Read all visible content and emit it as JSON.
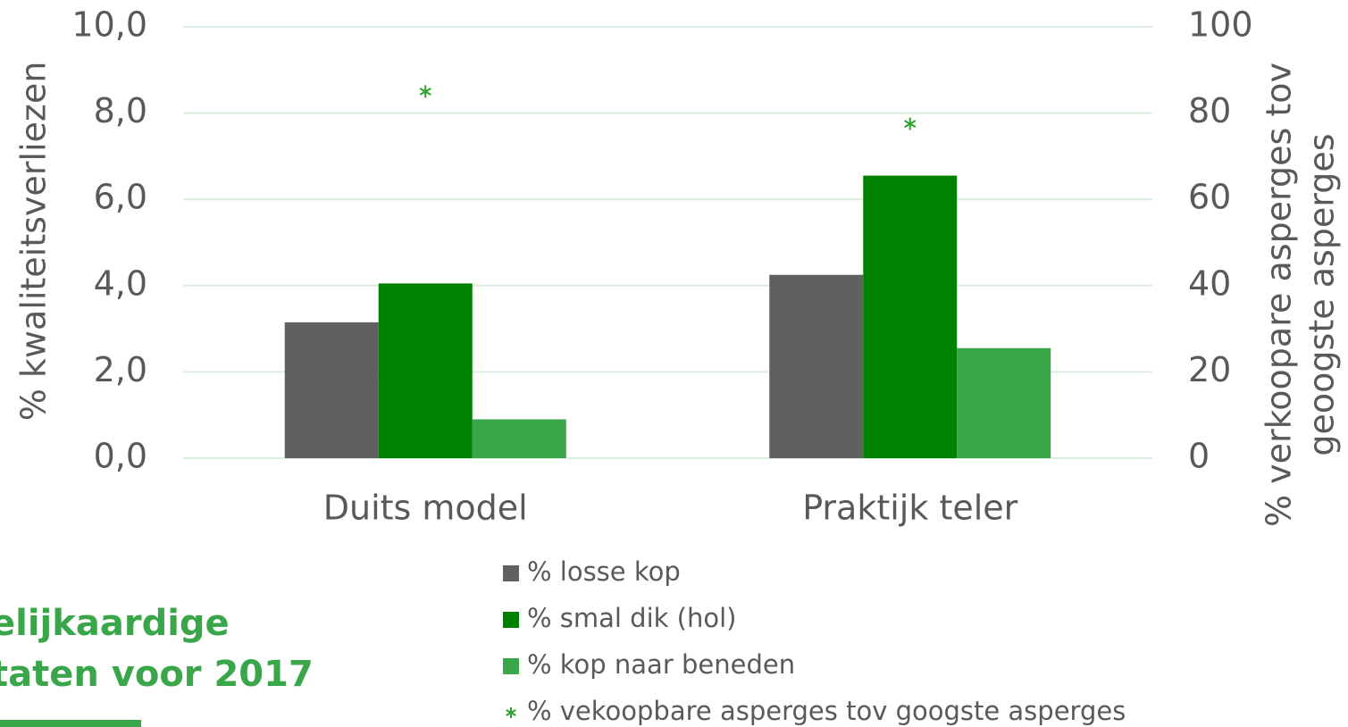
{
  "chart_data": {
    "type": "bar",
    "categories": [
      "Duits model",
      "Praktijk teler"
    ],
    "series": [
      {
        "name": "% losse kop",
        "color": "#606060",
        "values": [
          3.15,
          4.25
        ]
      },
      {
        "name": "% smal dik (hol)",
        "color": "#008000",
        "values": [
          4.05,
          6.55
        ]
      },
      {
        "name": "% kop naar beneden",
        "color": "#3aa64a",
        "values": [
          0.9,
          2.55
        ]
      },
      {
        "name": "% vekoopbare asperges tov googste asperges",
        "color": "#2ca02c",
        "type": "scatter",
        "axis": "y2",
        "values": [
          85,
          77.5
        ]
      }
    ],
    "ylabel": "% kwaliteitsverliezen",
    "y2label": [
      "% verkoopare asperges tov",
      "geoogste asperges"
    ],
    "ylim": [
      0,
      10
    ],
    "yticks": [
      {
        "value": 0,
        "label": "0,0"
      },
      {
        "value": 2,
        "label": "2,0"
      },
      {
        "value": 4,
        "label": "4,0"
      },
      {
        "value": 6,
        "label": "6,0"
      },
      {
        "value": 8,
        "label": "8,0"
      },
      {
        "value": 10,
        "label": "10,0"
      }
    ],
    "y2lim": [
      0,
      100
    ],
    "y2ticks": [
      0,
      20,
      40,
      60,
      80,
      100
    ],
    "grid": true,
    "legend": "bottom",
    "annotations": [
      "elijkaardige",
      "taten voor 2017"
    ]
  }
}
